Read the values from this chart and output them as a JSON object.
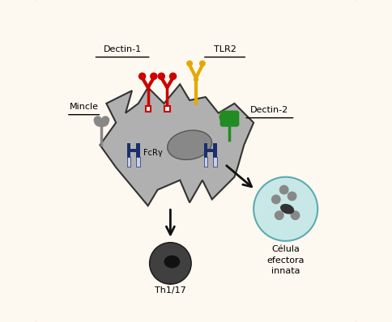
{
  "background_color": "#fdf8f0",
  "border_color": "#d4b483",
  "fig_width": 4.84,
  "fig_height": 3.98,
  "cell_color": "#b0b0b0",
  "cell_edge_color": "#333333",
  "nucleus_color": "#888888",
  "th_cell_color": "#404040",
  "th_nucleus_color": "#111111",
  "innate_cell_color": "#c8e8e8",
  "innate_cell_edge": "#5aacb0",
  "innate_spot_color": "#888888",
  "innate_spot_dark": "#333333",
  "dectin1_color": "#cc0000",
  "tlr2_color": "#e6a800",
  "dectin2_color": "#228B22",
  "mincle_color": "#888888",
  "fcry_color": "#1a2e6e",
  "fcry_light": "#c8d0e8",
  "arrow_color": "#111111",
  "label_color": "#000000",
  "underline_color": "#000000",
  "label_dectin1": "Dectin-1",
  "label_tlr2": "TLR2",
  "label_dectin2": "Dectin-2",
  "label_mincle": "Mincle",
  "label_fcry": "FcRγ",
  "label_th": "Th1/17",
  "label_innate1": "Célula",
  "label_innate2": "efectora",
  "label_innate3": "innata"
}
